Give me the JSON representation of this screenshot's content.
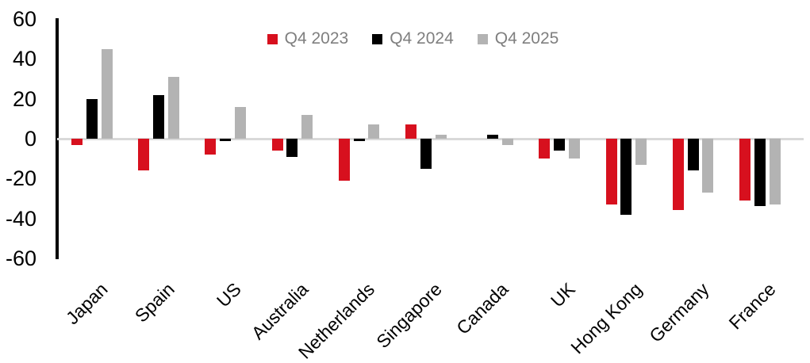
{
  "chart_data": {
    "type": "bar",
    "title": "",
    "xlabel": "",
    "ylabel": "",
    "categories": [
      "Japan",
      "Spain",
      "US",
      "Australia",
      "Netherlands",
      "Singapore",
      "Canada",
      "UK",
      "Hong Kong",
      "Germany",
      "France"
    ],
    "series": [
      {
        "name": "Q4 2023",
        "color": "#d7101e",
        "values": [
          -3,
          -16,
          -8,
          -6,
          -21,
          7,
          0,
          -10,
          -33,
          -36,
          -31
        ]
      },
      {
        "name": "Q4 2024",
        "color": "#000000",
        "values": [
          20,
          22,
          -1,
          -9,
          -1,
          -15,
          2,
          -6,
          -38,
          -16,
          -34
        ]
      },
      {
        "name": "Q4 2025",
        "color": "#b3b3b3",
        "values": [
          45,
          31,
          16,
          12,
          7,
          2,
          -3,
          -10,
          -13,
          -27,
          -33
        ]
      }
    ],
    "ylim": [
      -60,
      60
    ],
    "yticks": [
      60,
      40,
      20,
      0,
      -20,
      -40,
      -60
    ],
    "legend_position": "top-center",
    "grid": "zero-baseline-only",
    "colors": {
      "axis_line": "#000000",
      "zero_line": "#d9d9d9",
      "tick_label": "#000000",
      "legend_text": "#7f7f7f"
    }
  }
}
